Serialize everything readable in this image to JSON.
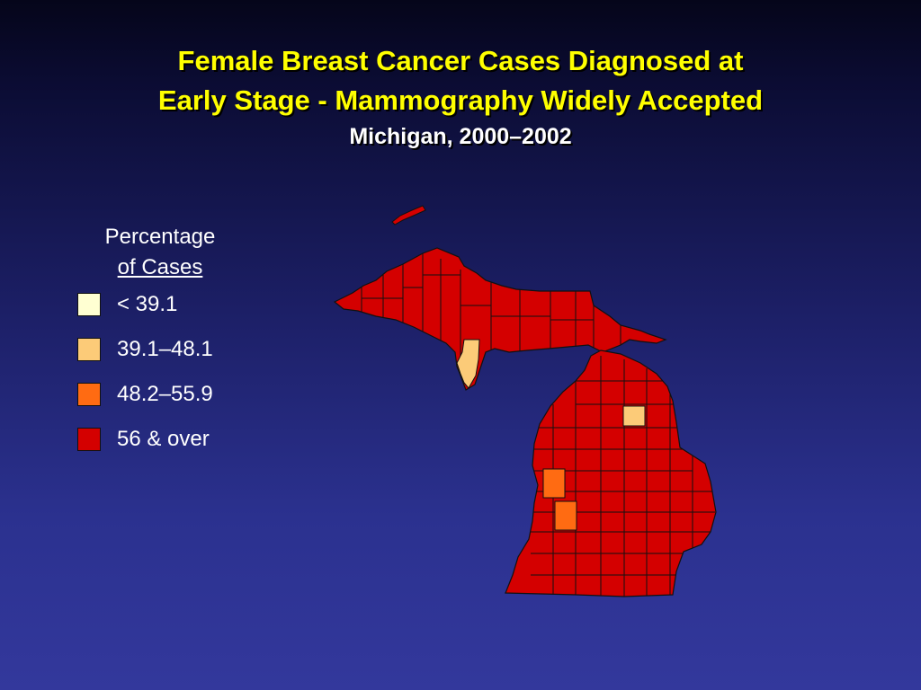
{
  "title": {
    "line1": "Female Breast Cancer Cases Diagnosed at",
    "line2": "Early Stage - Mammography Widely Accepted",
    "subtitle": "Michigan, 2000–2002"
  },
  "legend": {
    "heading_line1": "Percentage",
    "heading_line2": "of Cases",
    "items": [
      {
        "label": "< 39.1",
        "color": "#ffffd2"
      },
      {
        "label": "39.1–48.1",
        "color": "#fccb78"
      },
      {
        "label": "48.2–55.9",
        "color": "#ff6b12"
      },
      {
        "label": "56 & over",
        "color": "#d40000"
      }
    ]
  },
  "map": {
    "region": "Michigan",
    "default_class": "56 & over",
    "highlighted_counties": [
      {
        "position": "upper peninsula, south-central (Delta area)",
        "class": "39.1–48.1"
      },
      {
        "position": "northeast lower peninsula",
        "class": "39.1–48.1"
      },
      {
        "position": "west-central lower peninsula (north)",
        "class": "48.2–55.9"
      },
      {
        "position": "west-central lower peninsula (south)",
        "class": "48.2–55.9"
      }
    ]
  }
}
